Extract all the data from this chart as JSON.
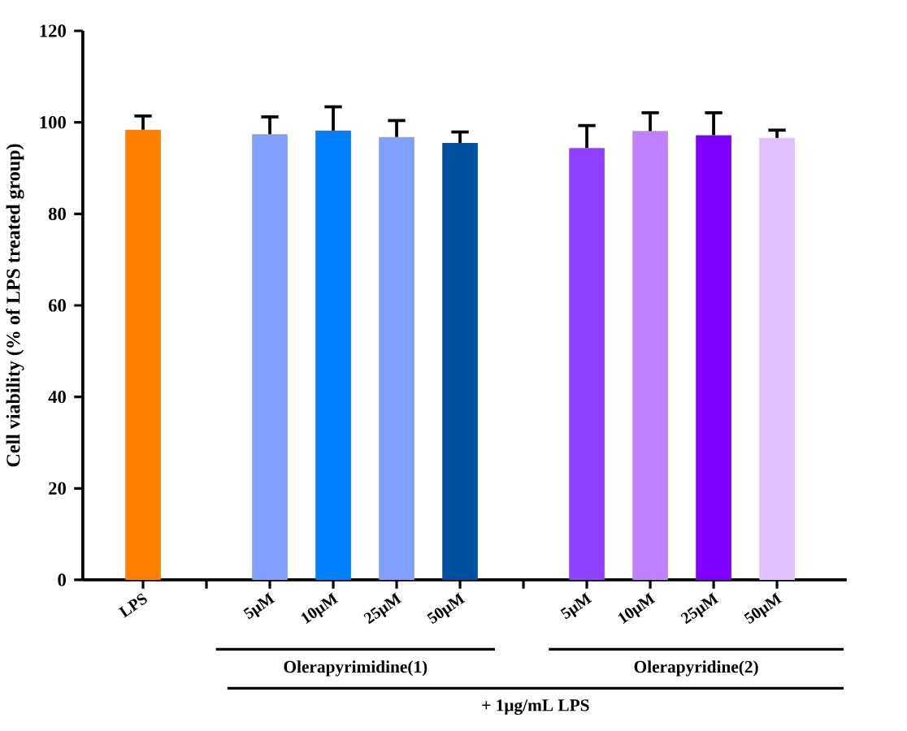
{
  "chart_data": {
    "type": "bar",
    "ylabel": "Cell viability (% of LPS treated group)",
    "categories": [
      "LPS",
      null,
      "5μM",
      "10μM",
      "25μM",
      "50μM",
      null,
      "5μM",
      "10μM",
      "25μM",
      "50μM"
    ],
    "values": [
      98.4,
      null,
      97.4,
      98.2,
      96.8,
      95.5,
      null,
      94.4,
      98.1,
      97.2,
      96.6
    ],
    "colors": [
      "#ff7f00",
      "#ffffff",
      "#80a0ff",
      "#0080ff",
      "#80a0ff",
      "#0050a0",
      "#ffffff",
      "#9040ff",
      "#c080ff",
      "#8000ff",
      "#e0c0ff"
    ],
    "errors": [
      3.0,
      null,
      3.8,
      5.2,
      3.6,
      2.4,
      null,
      4.9,
      4.0,
      4.9,
      1.7
    ],
    "ylim": [
      0,
      120
    ],
    "yticks": [
      0,
      20,
      40,
      60,
      80,
      100,
      120
    ],
    "annotations": [
      "Olerapyrimidine(1)",
      "Olerapyridine(2)",
      "+ 1μg/mL LPS"
    ]
  }
}
